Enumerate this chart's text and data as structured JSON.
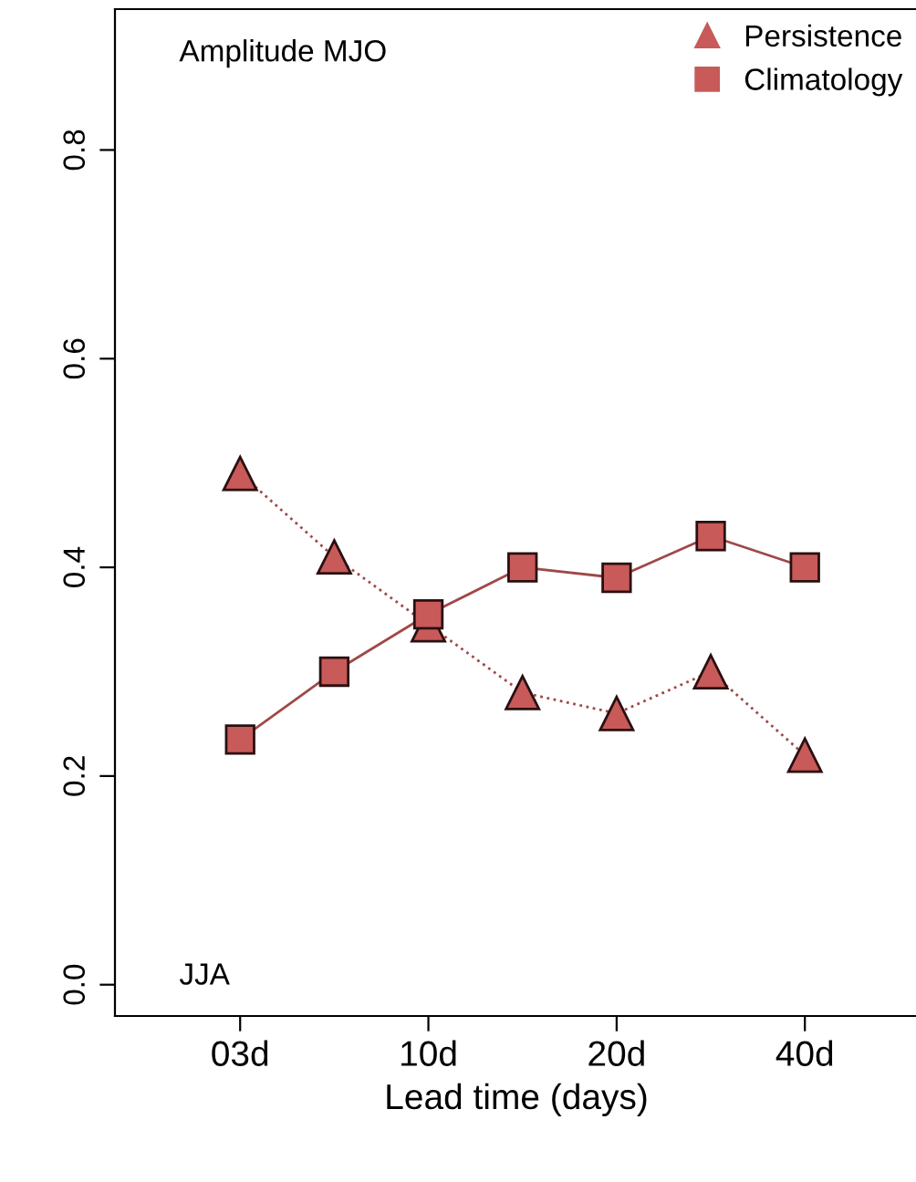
{
  "chart_data": {
    "type": "line",
    "xlabel": "Lead time (days)",
    "categories": [
      "03d",
      null,
      "10d",
      null,
      "20d",
      null,
      "40d"
    ],
    "series": [
      {
        "name": "Persistence",
        "color": "#c85a5a",
        "marker": "triangle",
        "line_style": "dotted",
        "values": [
          0.49,
          0.41,
          0.345,
          0.28,
          0.26,
          0.3,
          0.22
        ]
      },
      {
        "name": "Climatology",
        "color": "#c85a5a",
        "marker": "square",
        "line_style": "solid",
        "values": [
          0.235,
          0.3,
          0.355,
          0.4,
          0.39,
          0.43,
          0.4
        ]
      }
    ],
    "ylim": [
      -0.03,
      0.935
    ],
    "yticks": [
      {
        "value": 0,
        "label": "0.0"
      },
      0.2,
      0.4,
      0.6,
      0.8
    ],
    "annotations": [
      "Amplitude MJO",
      "JJA"
    ],
    "legend": "top right",
    "grid": false
  }
}
